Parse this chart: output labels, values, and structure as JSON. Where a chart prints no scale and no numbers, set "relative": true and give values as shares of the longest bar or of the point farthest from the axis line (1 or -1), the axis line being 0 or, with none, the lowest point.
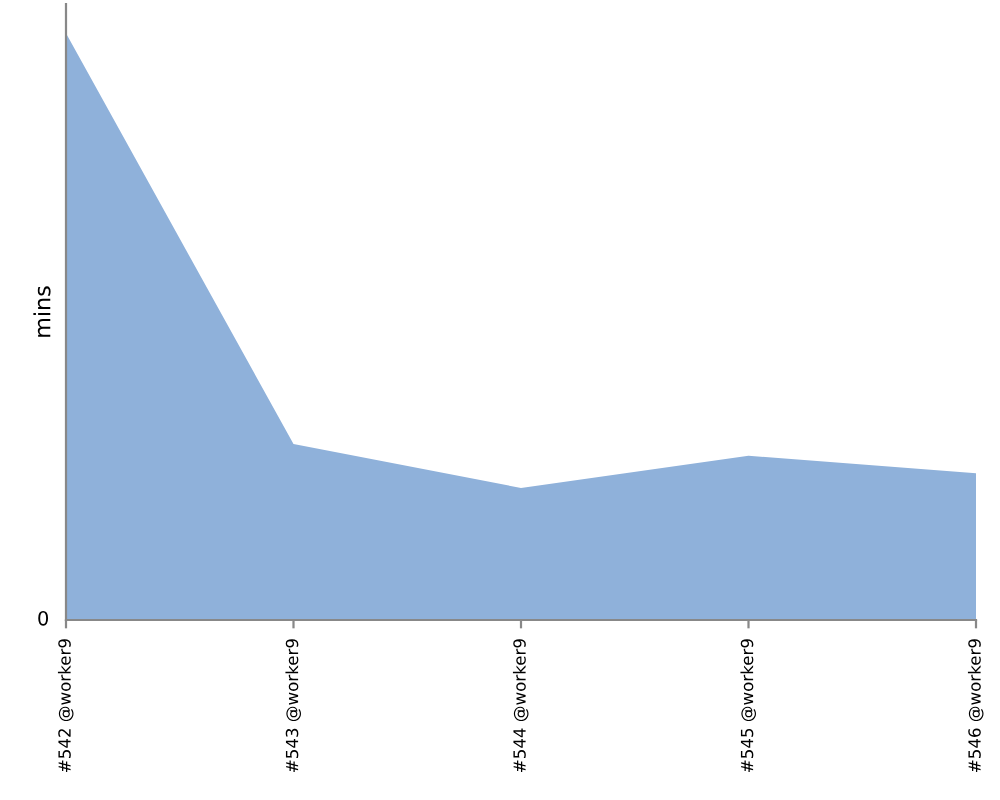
{
  "chart_data": {
    "type": "area",
    "ylabel": "mins",
    "relative": true,
    "annotations": [
      "0"
    ],
    "categories": [
      "#542 @worker9",
      "#543 @worker9",
      "#544 @worker9",
      "#545 @worker9",
      "#546 @worker9"
    ],
    "series": [
      {
        "color": "#8fb1da",
        "values": [
          1.0,
          0.3,
          0.225,
          0.28,
          0.25
        ]
      }
    ]
  }
}
